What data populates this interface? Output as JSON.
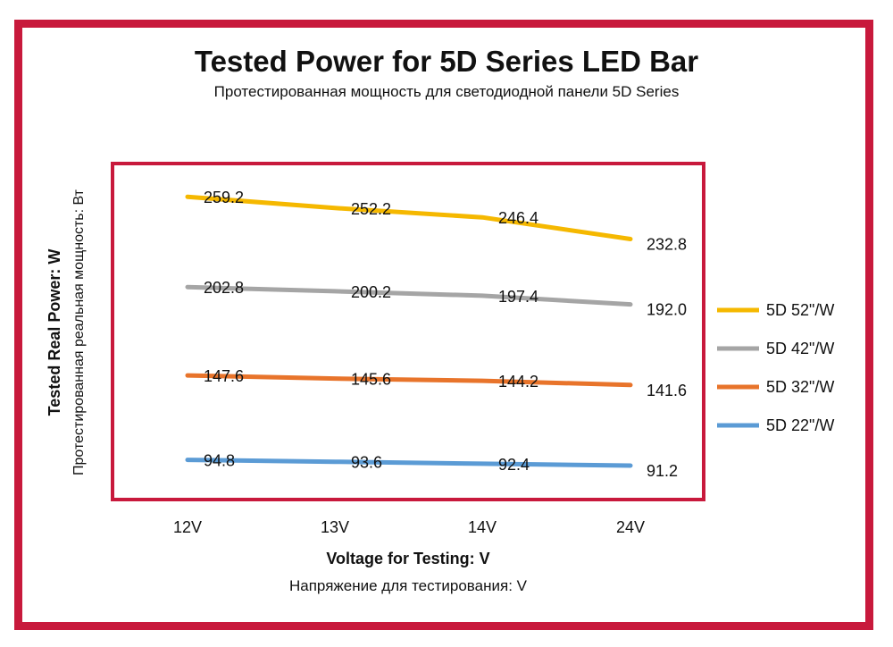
{
  "chart_data": {
    "type": "line",
    "title": "Tested Power for 5D Series LED Bar",
    "subtitle": "Протестированная мощность для светодиодной панели 5D Series",
    "xlabel": "Voltage for Testing: V",
    "xlabel_sub": "Напряжение для тестирования:  V",
    "ylabel": "Tested Real Power: W",
    "ylabel_sub": "Протестированная реальная мощность:  Вт",
    "categories": [
      "12V",
      "13V",
      "14V",
      "24V"
    ],
    "ylim": [
      70,
      280
    ],
    "grid": false,
    "legend_position": "right",
    "series": [
      {
        "name": "5D 52\"/W",
        "color": "#f5b800",
        "values": [
          259.2,
          252.2,
          246.4,
          232.8
        ],
        "labels": [
          "259.2",
          "252.2",
          "246.4",
          "232.8"
        ]
      },
      {
        "name": "5D 42\"/W",
        "color": "#a5a5a5",
        "values": [
          202.8,
          200.2,
          197.4,
          192.0
        ],
        "labels": [
          "202.8",
          "200.2",
          "197.4",
          "192.0"
        ]
      },
      {
        "name": "5D 32\"/W",
        "color": "#e8742b",
        "values": [
          147.6,
          145.6,
          144.2,
          141.6
        ],
        "labels": [
          "147.6",
          "145.6",
          "144.2",
          "141.6"
        ]
      },
      {
        "name": "5D 22\"/W",
        "color": "#5b9bd5",
        "values": [
          94.8,
          93.6,
          92.4,
          91.2
        ],
        "labels": [
          "94.8",
          "93.6",
          "92.4",
          "91.2"
        ]
      }
    ]
  },
  "colors": {
    "frame": "#c8193c",
    "plot_border": "#c8193c"
  }
}
